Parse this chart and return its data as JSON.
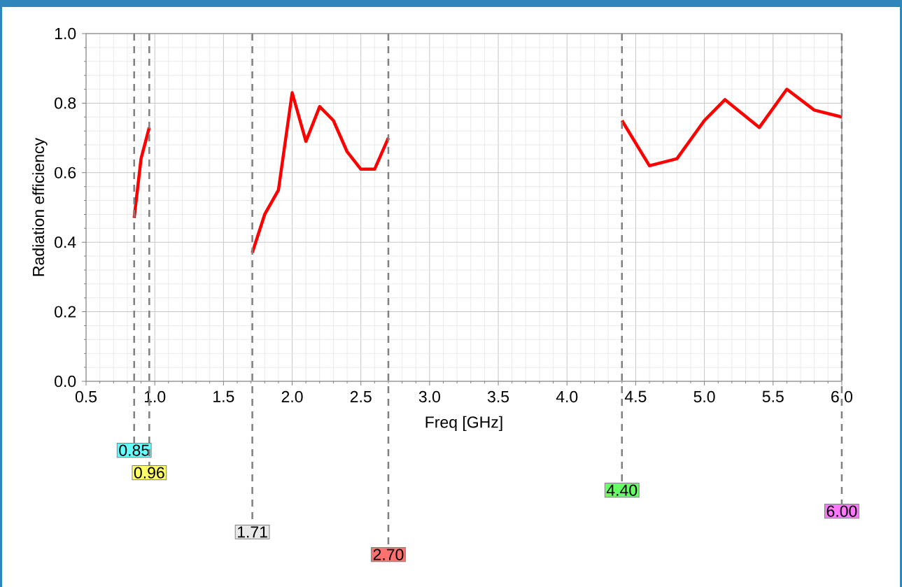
{
  "chart_data": {
    "type": "line",
    "xlabel": "Freq [GHz]",
    "ylabel": "Radiation efficiency",
    "x": [
      0.85,
      0.9,
      0.96,
      1.3,
      1.71,
      1.8,
      1.9,
      2.0,
      2.1,
      2.2,
      2.3,
      2.4,
      2.5,
      2.6,
      2.7,
      3.5,
      4.4,
      4.6,
      4.8,
      5.0,
      5.15,
      5.4,
      5.6,
      5.8,
      6.0
    ],
    "series": [
      {
        "color": "#ff0000",
        "values": [
          0.47,
          0.64,
          0.73,
          null,
          0.37,
          0.48,
          0.55,
          0.83,
          0.69,
          0.79,
          0.75,
          0.66,
          0.61,
          0.61,
          0.7,
          null,
          0.75,
          0.62,
          0.64,
          0.75,
          0.81,
          0.73,
          0.84,
          0.78,
          0.76
        ]
      }
    ],
    "xlim": [
      0.5,
      6.0
    ],
    "ylim": [
      0.0,
      1.0
    ],
    "xticks": [
      {
        "value": 0.5,
        "label": "0.5"
      },
      {
        "value": 1.0,
        "label": "1.0"
      },
      {
        "value": 1.5,
        "label": "1.5"
      },
      {
        "value": 2.0,
        "label": "2.0"
      },
      {
        "value": 2.5,
        "label": "2.5"
      },
      {
        "value": 3.0,
        "label": "3.0"
      },
      {
        "value": 3.5,
        "label": "3.5"
      },
      {
        "value": 4.0,
        "label": "4.0"
      },
      {
        "value": 4.5,
        "label": "4.5"
      },
      {
        "value": 5.0,
        "label": "5.0"
      },
      {
        "value": 5.5,
        "label": "5.5"
      },
      {
        "value": 6.0,
        "label": "6.0"
      }
    ],
    "yticks": [
      {
        "value": 0.0,
        "label": "0.0"
      },
      {
        "value": 0.2,
        "label": "0.2"
      },
      {
        "value": 0.4,
        "label": "0.4"
      },
      {
        "value": 0.6,
        "label": "0.6"
      },
      {
        "value": 0.8,
        "label": "0.8"
      },
      {
        "value": 1.0,
        "label": "1.0"
      }
    ],
    "ref_lines": [
      {
        "axis": "x",
        "value": 0.85,
        "label": "0.85",
        "color": "#808080",
        "line_style": "dashed"
      },
      {
        "axis": "x",
        "value": 0.96,
        "label": "0.96",
        "color": "#808080",
        "line_style": "dashed"
      },
      {
        "axis": "x",
        "value": 1.71,
        "label": "1.71",
        "color": "#808080",
        "line_style": "dashed"
      },
      {
        "axis": "x",
        "value": 2.7,
        "label": "2.70",
        "color": "#808080",
        "line_style": "dashed"
      },
      {
        "axis": "x",
        "value": 4.4,
        "label": "4.40",
        "color": "#808080",
        "line_style": "dashed"
      },
      {
        "axis": "x",
        "value": 6.0,
        "label": "6.00",
        "color": "#808080",
        "line_style": "dashed"
      }
    ],
    "grid": true,
    "marker": "none",
    "line_style": "solid"
  }
}
